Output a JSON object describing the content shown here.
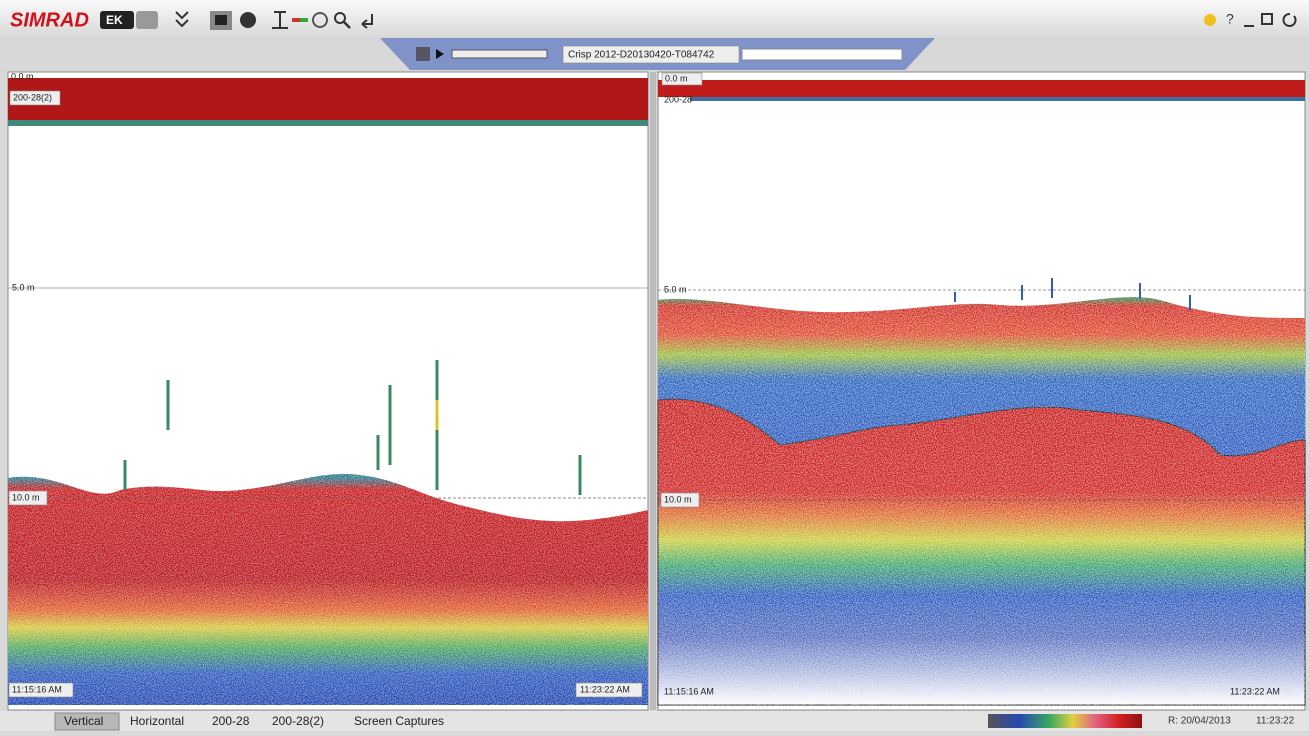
{
  "app": {
    "brand": "SIMRAD",
    "product": "EK",
    "help": "?"
  },
  "playback": {
    "file": "Crisp 2012-D20130420-T084742"
  },
  "panels": [
    {
      "surface": "0.0 m",
      "channel": "200-28(2)",
      "depths": [
        "5.0 m",
        "10.0 m"
      ],
      "start_time": "11:15:16 AM",
      "end_time": "11:23:22 AM"
    },
    {
      "surface": "0.0 m",
      "channel": "200-28",
      "depths": [
        "5.0 m",
        "10.0 m"
      ],
      "start_time": "11:15:16 AM",
      "end_time": "11:23:22 AM"
    }
  ],
  "tabs": [
    "Vertical",
    "Horizontal",
    "200-28",
    "200-28(2)",
    "Screen Captures"
  ],
  "status": {
    "date": "R: 20/04/2013",
    "time": "11:23:22"
  }
}
